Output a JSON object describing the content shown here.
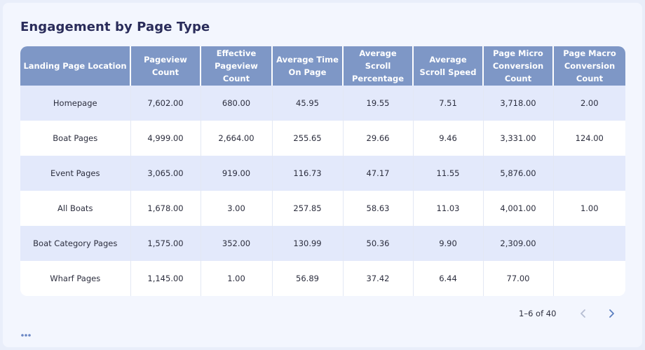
{
  "title": "Engagement by Page Type",
  "chart_data": {
    "type": "table",
    "title": "Engagement by Page Type",
    "columns": [
      [
        "Landing Page Location"
      ],
      [
        "Pageview",
        "Count"
      ],
      [
        "Effective",
        "Pageview",
        "Count"
      ],
      [
        "Average Time",
        "On Page"
      ],
      [
        "Average",
        "Scroll",
        "Percentage"
      ],
      [
        "Average",
        "Scroll Speed"
      ],
      [
        "Page Micro",
        "Conversion",
        "Count"
      ],
      [
        "Page Macro",
        "Conversion",
        "Count"
      ]
    ],
    "rows": [
      [
        "Homepage",
        "7,602.00",
        "680.00",
        "45.95",
        "19.55",
        "7.51",
        "3,718.00",
        "2.00"
      ],
      [
        "Boat Pages",
        "4,999.00",
        "2,664.00",
        "255.65",
        "29.66",
        "9.46",
        "3,331.00",
        "124.00"
      ],
      [
        "Event Pages",
        "3,065.00",
        "919.00",
        "116.73",
        "47.17",
        "11.55",
        "5,876.00",
        ""
      ],
      [
        "All Boats",
        "1,678.00",
        "3.00",
        "257.85",
        "58.63",
        "11.03",
        "4,001.00",
        "1.00"
      ],
      [
        "Boat Category Pages",
        "1,575.00",
        "352.00",
        "130.99",
        "50.36",
        "9.90",
        "2,309.00",
        ""
      ],
      [
        "Wharf Pages",
        "1,145.00",
        "1.00",
        "56.89",
        "37.42",
        "6.44",
        "77.00",
        ""
      ]
    ]
  },
  "pagination": {
    "text": "1–6 of 40",
    "prev_icon": "chevron-left-icon",
    "next_icon": "chevron-right-icon",
    "prev_color": "#b5bdd2",
    "next_color": "#5b7fc0"
  },
  "more_icon": "more-horizontal-icon",
  "colors": {
    "header_bg": "#7e97c6",
    "row_alt_bg": "#e3e9fb",
    "title": "#2a2c5a",
    "dots": "#6a86c4"
  }
}
